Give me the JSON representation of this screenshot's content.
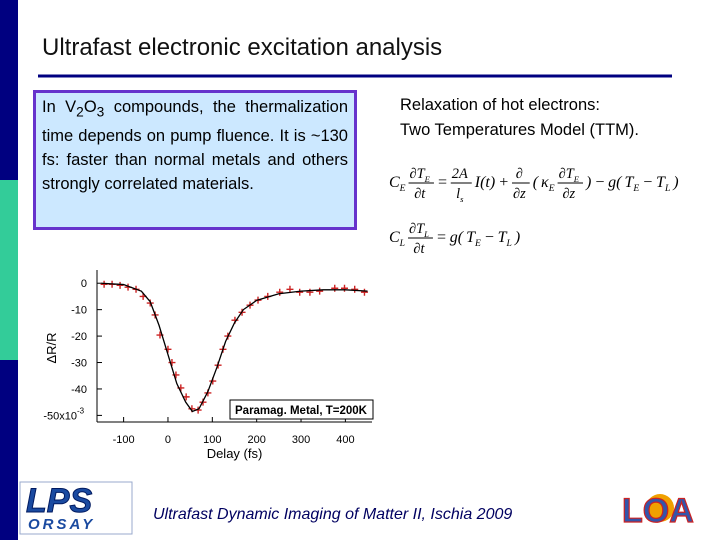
{
  "title": "Ultrafast electronic excitation analysis",
  "text_box": [
    "In V",
    "2",
    "O",
    "3",
    " compounds, the thermalization time depends on pump fluence. It is ~130 fs: faster than normal metals and others strongly correlated materials."
  ],
  "relaxation": [
    "Relaxation of hot electrons:",
    "Two Temperatures Model (TTM)."
  ],
  "equations": [
    [
      {
        "t": "C",
        "s": "E"
      },
      {
        "num": [
          {
            "t": "∂T",
            "s": "E"
          }
        ],
        "den": [
          "∂t"
        ]
      },
      "=",
      {
        "num": [
          "2A"
        ],
        "den": [
          {
            "t": "l",
            "s": "s"
          }
        ]
      },
      "I(t)",
      "+",
      {
        "num": [
          "∂"
        ],
        "den": [
          "∂z"
        ]
      },
      "(",
      {
        "t": "κ",
        "s": "E"
      },
      {
        "num": [
          {
            "t": "∂T",
            "s": "E"
          }
        ],
        "den": [
          "∂z"
        ]
      },
      ")",
      "−",
      "g(",
      {
        "t": "T",
        "s": "E"
      },
      "−",
      {
        "t": "T",
        "s": "L"
      },
      ")"
    ],
    [
      {
        "t": "C",
        "s": "L"
      },
      {
        "num": [
          {
            "t": "∂T",
            "s": "L"
          }
        ],
        "den": [
          "∂t"
        ]
      },
      "=",
      "g(",
      {
        "t": "T",
        "s": "E"
      },
      "−",
      {
        "t": "T",
        "s": "L"
      },
      ")"
    ]
  ],
  "footer": "Ultrafast Dynamic Imaging of Matter II, Ischia 2009",
  "logos": {
    "left": [
      "LPS",
      "ORSAY"
    ],
    "right": "LOA"
  },
  "chart_data": {
    "type": "line",
    "xlabel": "Delay (fs)",
    "ylabel": "ΔR/R",
    "annotation": "Paramag. Metal, T=200K",
    "xlim": [
      -160,
      460
    ],
    "ylim": [
      -52.5,
      5
    ],
    "xticks": [
      -100,
      0,
      100,
      200,
      300,
      400
    ],
    "yticks": [
      0,
      -10,
      -20,
      -30,
      -40,
      {
        "value": -50,
        "label": "-50x10"
      }
    ],
    "y_exponent": "-3",
    "series": [
      {
        "style": "markers",
        "color": "#cc2222",
        "x": [
          -144,
          -126,
          -108,
          -90,
          -72,
          -56,
          -40,
          -29,
          -18,
          0,
          9,
          18,
          29,
          41,
          54,
          68,
          79,
          90,
          101,
          113,
          124,
          135,
          151,
          167,
          185,
          203,
          225,
          252,
          275,
          297,
          320,
          342,
          376,
          398,
          421,
          443
        ],
        "values": [
          -0.4,
          -0.4,
          -0.8,
          -1.5,
          -2.3,
          -5,
          -7.5,
          -12,
          -19.6,
          -25,
          -30,
          -34.7,
          -39.6,
          -43,
          -47.5,
          -48,
          -45,
          -41.5,
          -37,
          -31,
          -25,
          -20,
          -14,
          -11,
          -8.3,
          -6.4,
          -5,
          -3.4,
          -2.3,
          -3.4,
          -3.4,
          -3,
          -1.9,
          -1.9,
          -2.3,
          -3.4
        ]
      },
      {
        "style": "line",
        "color": "#000000",
        "x": [
          -150,
          -100,
          -60,
          -40,
          -20,
          0,
          20,
          40,
          55,
          70,
          90,
          110,
          130,
          150,
          170,
          200,
          250,
          300,
          350,
          400,
          450
        ],
        "values": [
          0,
          -0.5,
          -3,
          -7,
          -16,
          -27,
          -38,
          -45,
          -48.5,
          -47.5,
          -41,
          -32,
          -22,
          -15,
          -10,
          -6.5,
          -4,
          -3,
          -2.5,
          -2.5,
          -3
        ]
      }
    ]
  }
}
